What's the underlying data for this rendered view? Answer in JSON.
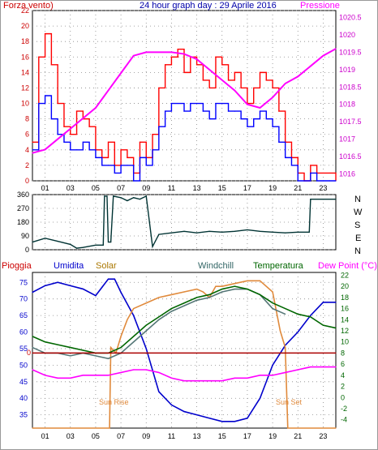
{
  "header": {
    "title": "24 hour graph day : 29 Aprile 2016",
    "left_label": "Forza vento)",
    "right_label": "Pressione"
  },
  "bottom_header": {
    "pioggia": "Pioggia",
    "umidita": "Umidita",
    "solar": "Solar",
    "windchill": "Windchill",
    "temperatura": "Temperatura",
    "dewpoint": "Dew Point (°C)"
  },
  "annotations": {
    "sunrise": "Sun Rise",
    "sunset": "Sun Set"
  },
  "colors": {
    "wind_gust": "#ff0000",
    "wind_avg": "#0000ff",
    "pressure": "#ff00ff",
    "direction": "#003333",
    "humidity": "#0000cc",
    "solar": "#e08a3c",
    "windchill": "#557777",
    "temperature": "#006600",
    "dewpoint": "#ff00ff",
    "rain": "#aa0000"
  },
  "chart_data": [
    {
      "type": "line",
      "title": "24 hour graph day : 29 Aprile 2016",
      "x_ticks": [
        "01",
        "03",
        "05",
        "07",
        "09",
        "11",
        "13",
        "15",
        "17",
        "19",
        "21",
        "23"
      ],
      "xlim": [
        0,
        24
      ],
      "y_left": {
        "label": "Forza vento)",
        "ticks": [
          "0",
          "2",
          "4",
          "6",
          "8",
          "10",
          "12",
          "14",
          "16",
          "18",
          "20",
          "22"
        ],
        "lim": [
          0,
          22
        ]
      },
      "y_right": {
        "label": "Pressione",
        "ticks": [
          "1016",
          "1016.5",
          "1017",
          "1017.5",
          "1018",
          "1018.5",
          "1019",
          "1019.5",
          "1020",
          "1020.5"
        ],
        "lim": [
          1015.8,
          1020.7
        ]
      },
      "series": [
        {
          "name": "Forza vento)",
          "axis": "left",
          "x": [
            0,
            0.5,
            1,
            1.5,
            2,
            2.5,
            3,
            3.5,
            4,
            4.5,
            5,
            5.5,
            6,
            6.5,
            7,
            7.5,
            8,
            8.5,
            9,
            9.5,
            10,
            10.5,
            11,
            11.5,
            12,
            12.5,
            13,
            13.5,
            14,
            14.5,
            15,
            15.5,
            16,
            16.5,
            17,
            17.5,
            18,
            18.5,
            19,
            19.5,
            20,
            20.5,
            21,
            21.5,
            22,
            22.5,
            23,
            23.5,
            24
          ],
          "values": [
            5,
            16,
            19,
            15,
            10,
            7,
            6,
            9,
            8,
            7,
            4,
            3,
            5,
            2,
            4,
            3,
            1,
            5,
            3,
            6,
            12,
            15,
            16,
            17,
            14,
            16,
            15,
            13,
            12,
            16,
            15,
            13,
            14,
            12,
            10,
            12,
            14,
            13,
            12,
            9,
            5,
            3,
            1,
            0,
            2,
            1,
            1,
            1,
            0
          ]
        },
        {
          "name": "",
          "axis": "left",
          "x": [
            0,
            0.5,
            1,
            1.5,
            2,
            2.5,
            3,
            3.5,
            4,
            4.5,
            5,
            5.5,
            6,
            6.5,
            7,
            7.5,
            8,
            8.5,
            9,
            9.5,
            10,
            10.5,
            11,
            11.5,
            12,
            12.5,
            13,
            13.5,
            14,
            14.5,
            15,
            15.5,
            16,
            16.5,
            17,
            17.5,
            18,
            18.5,
            19,
            19.5,
            20,
            20.5,
            21,
            21.5,
            22,
            22.5,
            23,
            23.5,
            24
          ],
          "values": [
            4,
            10,
            11,
            8,
            6,
            5,
            4,
            4,
            5,
            4,
            3,
            2,
            2,
            1,
            2,
            2,
            0,
            3,
            2,
            4,
            7,
            9,
            10,
            10,
            9,
            10,
            10,
            9,
            8,
            10,
            10,
            9,
            9,
            8,
            7,
            8,
            9,
            8,
            7,
            5,
            3,
            2,
            0,
            0,
            1,
            0,
            0,
            0,
            0
          ]
        },
        {
          "name": "Pressione",
          "axis": "right",
          "x": [
            0,
            1,
            2,
            3,
            4,
            5,
            6,
            7,
            8,
            9,
            10,
            11,
            12,
            13,
            14,
            15,
            16,
            17,
            18,
            19,
            20,
            21,
            22,
            23,
            24
          ],
          "values": [
            1016.6,
            1016.7,
            1017.0,
            1017.3,
            1017.6,
            1017.9,
            1018.4,
            1018.9,
            1019.4,
            1019.5,
            1019.5,
            1019.5,
            1019.45,
            1019.3,
            1019.0,
            1018.7,
            1018.4,
            1018.0,
            1017.9,
            1018.2,
            1018.6,
            1018.8,
            1019.1,
            1019.4,
            1019.6
          ]
        }
      ]
    },
    {
      "type": "line",
      "title": "",
      "xlim": [
        0,
        24
      ],
      "y_ticks": [
        "0",
        "90",
        "180",
        "270",
        "360"
      ],
      "ylim": [
        0,
        360
      ],
      "compass_labels": [
        "N",
        "W",
        "S",
        "E",
        "N"
      ],
      "series": [
        {
          "name": "",
          "x": [
            0,
            1,
            2,
            3,
            3.5,
            4,
            5,
            5.6,
            5.7,
            5.9,
            6.0,
            6.2,
            6.4,
            7,
            7.5,
            8,
            8.5,
            9,
            9.5,
            10,
            11,
            12,
            13,
            14,
            15,
            16,
            17,
            18,
            19,
            20,
            21,
            21.9,
            22,
            23,
            24
          ],
          "values": [
            50,
            75,
            55,
            35,
            10,
            15,
            30,
            30,
            350,
            350,
            50,
            50,
            350,
            340,
            320,
            340,
            330,
            350,
            20,
            100,
            110,
            120,
            110,
            120,
            115,
            120,
            130,
            120,
            115,
            110,
            115,
            115,
            330,
            330,
            330
          ]
        }
      ]
    },
    {
      "type": "line",
      "title": "",
      "x_ticks": [
        "01",
        "03",
        "05",
        "07",
        "09",
        "11",
        "13",
        "15",
        "17",
        "19",
        "21",
        "23"
      ],
      "xlim": [
        0,
        24
      ],
      "y_left": {
        "label": "Umidita",
        "ticks": [
          "35",
          "40",
          "45",
          "50",
          "55",
          "60",
          "65",
          "70",
          "75"
        ],
        "lim": [
          31,
          78
        ]
      },
      "y_right": {
        "label": "Dew Point (°C)",
        "ticks": [
          "-4",
          "-2",
          "0",
          "2",
          "4",
          "6",
          "8",
          "10",
          "12",
          "14",
          "16",
          "18",
          "20",
          "22"
        ],
        "lim": [
          -5.5,
          22.5
        ]
      },
      "series": [
        {
          "name": "Umidita",
          "axis": "left",
          "x": [
            0,
            1,
            2,
            3,
            4,
            5,
            6,
            6.5,
            7,
            8,
            9,
            10,
            11,
            12,
            13,
            14,
            15,
            16,
            17,
            18,
            19,
            20,
            21,
            22,
            23,
            24
          ],
          "values": [
            72,
            74,
            75,
            74,
            73,
            71,
            76,
            76,
            72,
            65,
            55,
            42,
            38,
            36,
            35,
            34,
            33,
            33,
            34,
            40,
            50,
            56,
            60,
            65,
            69,
            69
          ]
        },
        {
          "name": "Solar",
          "axis": "right",
          "x": [
            0,
            6.1,
            6.2,
            6.6,
            7,
            7.5,
            8,
            9,
            10,
            11,
            12,
            13,
            13.5,
            14,
            14.5,
            15,
            16,
            17,
            18,
            19,
            19.6,
            20,
            20.2,
            24
          ],
          "values": [
            -6,
            -6,
            9,
            8,
            11,
            14,
            16,
            17,
            18,
            18.5,
            19,
            19.5,
            19,
            18,
            20,
            20,
            20.5,
            21,
            21,
            19,
            12,
            9,
            -6,
            -6
          ]
        },
        {
          "name": "Windchill",
          "axis": "right",
          "x": [
            0,
            1,
            2,
            3,
            4,
            5,
            6,
            7,
            8,
            9,
            10,
            11,
            12,
            13,
            14,
            15,
            16,
            17,
            18,
            19,
            20
          ],
          "values": [
            9,
            8,
            8,
            7.5,
            8,
            7.5,
            7,
            8,
            10,
            12,
            14,
            15.5,
            16.5,
            17.5,
            18,
            19,
            19.5,
            19.5,
            18.5,
            16,
            15
          ]
        },
        {
          "name": "Temperatura",
          "axis": "right",
          "x": [
            0,
            1,
            2,
            3,
            4,
            5,
            6,
            7,
            8,
            9,
            10,
            11,
            12,
            13,
            14,
            15,
            16,
            17,
            18,
            19,
            20,
            21,
            22,
            23,
            24
          ],
          "values": [
            11,
            10,
            9.5,
            9,
            8.5,
            8,
            8,
            9,
            11,
            13,
            14.5,
            16,
            17,
            18,
            18.5,
            19.5,
            20,
            19.5,
            18.5,
            17,
            16,
            15,
            14.5,
            13,
            12.5
          ]
        },
        {
          "name": "Dew Point (°C)",
          "axis": "right",
          "x": [
            0,
            1,
            2,
            3,
            4,
            5,
            6,
            7,
            8,
            9,
            10,
            11,
            12,
            13,
            14,
            15,
            16,
            17,
            18,
            19,
            20,
            21,
            22,
            23,
            24
          ],
          "values": [
            5,
            4,
            3.5,
            3.5,
            4,
            4,
            4,
            4.5,
            5,
            5,
            4.5,
            3.5,
            3,
            3,
            3,
            3,
            3.5,
            3.5,
            4,
            4,
            4.5,
            5,
            5.5,
            5.5,
            5.5
          ]
        },
        {
          "name": "Pioggia",
          "axis": "right",
          "x": [
            0,
            24
          ],
          "values": [
            8,
            8
          ]
        }
      ],
      "annotations": [
        "Sun Rise",
        "Sun Set"
      ]
    }
  ]
}
